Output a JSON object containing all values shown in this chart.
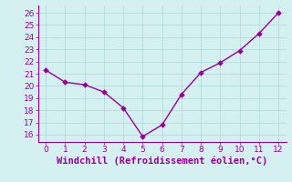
{
  "x": [
    0,
    1,
    2,
    3,
    4,
    5,
    6,
    7,
    8,
    9,
    10,
    11,
    12
  ],
  "y": [
    21.3,
    20.3,
    20.1,
    19.5,
    18.2,
    15.85,
    16.8,
    19.3,
    21.1,
    21.9,
    22.9,
    24.3,
    26.0
  ],
  "line_color": "#990099",
  "marker_color": "#990099",
  "bg_color": "#d4f0f0",
  "grid_color": "#b0d8d8",
  "xlabel": "Windchill (Refroidissement éolien,°C)",
  "xlabel_color": "#990099",
  "ylabel_ticks": [
    16,
    17,
    18,
    19,
    20,
    21,
    22,
    23,
    24,
    25,
    26
  ],
  "xticks": [
    0,
    1,
    2,
    3,
    4,
    5,
    6,
    7,
    8,
    9,
    10,
    11,
    12
  ],
  "ylim": [
    15.4,
    26.6
  ],
  "xlim": [
    -0.4,
    12.4
  ],
  "tick_color": "#990099",
  "tick_fontsize": 6.5,
  "xlabel_fontsize": 7.5,
  "spine_color": "#990099",
  "linewidth": 1.0,
  "markersize": 2.8
}
